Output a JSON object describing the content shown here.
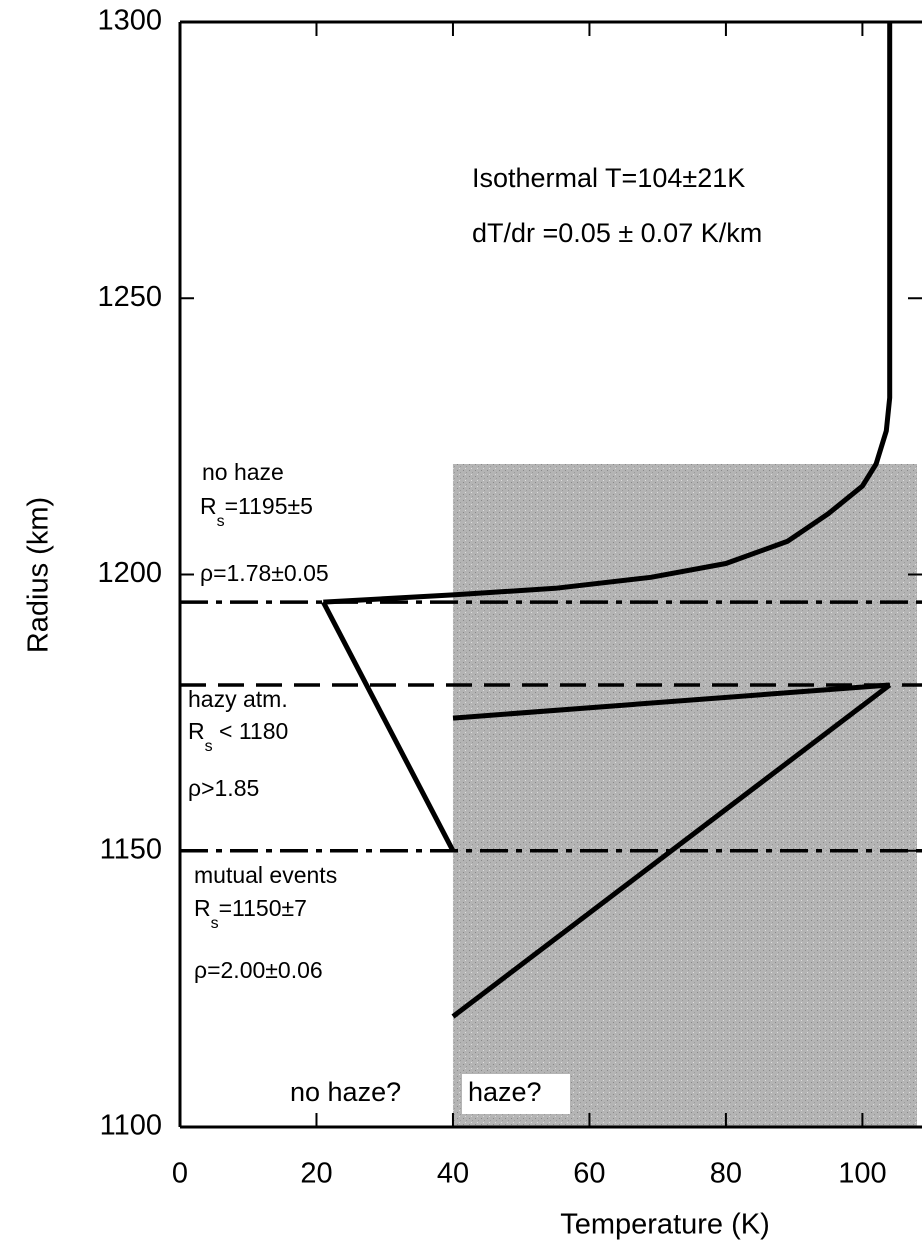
{
  "chart_data": {
    "type": "line",
    "xlabel": "Temperature (K)",
    "ylabel": "Radius (km)",
    "xlim": [
      0,
      108
    ],
    "ylim": [
      1100,
      1300
    ],
    "xticks": [
      0,
      20,
      40,
      60,
      80,
      100
    ],
    "yticks": [
      1100,
      1150,
      1200,
      1250,
      1300
    ],
    "series": [
      {
        "color": "#000000",
        "x": [
          104,
          104,
          103.5,
          102,
          100,
          95,
          89,
          80,
          69,
          55,
          40,
          21
        ],
        "values": [
          1300,
          1232,
          1226,
          1220,
          1216,
          1211,
          1206,
          1202,
          1199.5,
          1197.5,
          1196.3,
          1195
        ]
      },
      {
        "color": "#000000",
        "x": [
          21,
          40
        ],
        "values": [
          1195,
          1150
        ]
      },
      {
        "color": "#000000",
        "x": [
          40,
          104
        ],
        "values": [
          1174,
          1180
        ]
      },
      {
        "color": "#000000",
        "x": [
          40,
          104
        ],
        "values": [
          1120,
          1180
        ]
      }
    ],
    "hlines": [
      {
        "value": 1195,
        "style": "dashdot"
      },
      {
        "value": 1180,
        "style": "dashed"
      },
      {
        "value": 1150,
        "style": "dashdot"
      }
    ],
    "shade": {
      "x": [
        40,
        108
      ],
      "y": [
        1100,
        1220
      ],
      "color": "#b4b4b4"
    },
    "annotations": [
      {
        "text": "Isothermal T=104±21K"
      },
      {
        "text": "dT/dr =0.05 ± 0.07 K/km"
      },
      {
        "text": "no haze"
      },
      {
        "text": "R",
        "sub": "s",
        "rest": "=1195±5"
      },
      {
        "text": "ρ=1.78±0.05"
      },
      {
        "text": "hazy atm."
      },
      {
        "text": "R",
        "sub": "s",
        "rest": " < 1180"
      },
      {
        "text": "ρ>1.85"
      },
      {
        "text": "mutual events"
      },
      {
        "text": "R",
        "sub": "s",
        "rest": "=1150±7"
      },
      {
        "text": "ρ=2.00±0.06"
      },
      {
        "text": "no haze?"
      },
      {
        "text": "haze?"
      }
    ]
  }
}
